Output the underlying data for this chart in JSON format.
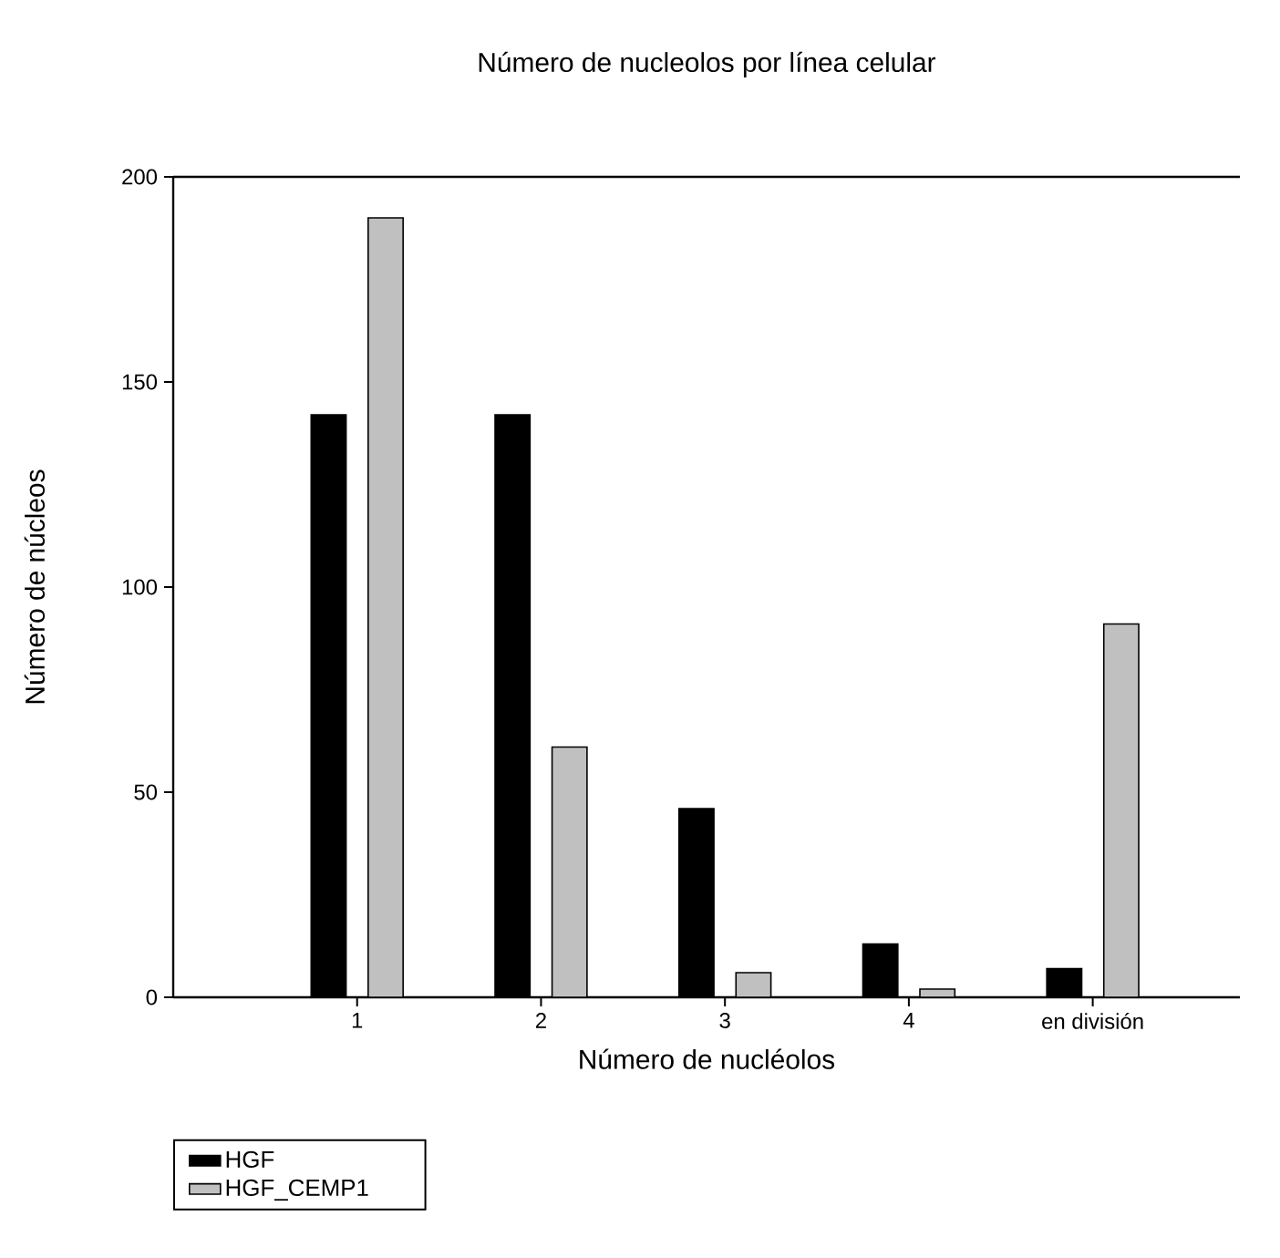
{
  "chart_data": {
    "type": "bar",
    "title": "Número de nucleolos por línea celular",
    "xlabel": "Número de nucléolos",
    "ylabel": "Número de núcleos",
    "categories": [
      "1",
      "2",
      "3",
      "4",
      "en división"
    ],
    "series": [
      {
        "name": "HGF",
        "color": "#000000",
        "values": [
          142,
          142,
          46,
          13,
          7
        ]
      },
      {
        "name": "HGF_CEMP1",
        "color": "#c0c0c0",
        "values": [
          190,
          61,
          6,
          2,
          91
        ]
      }
    ],
    "ylim": [
      0,
      200
    ],
    "yticks": [
      0,
      50,
      100,
      150,
      200
    ],
    "grid": false,
    "legend": "bottom left"
  }
}
